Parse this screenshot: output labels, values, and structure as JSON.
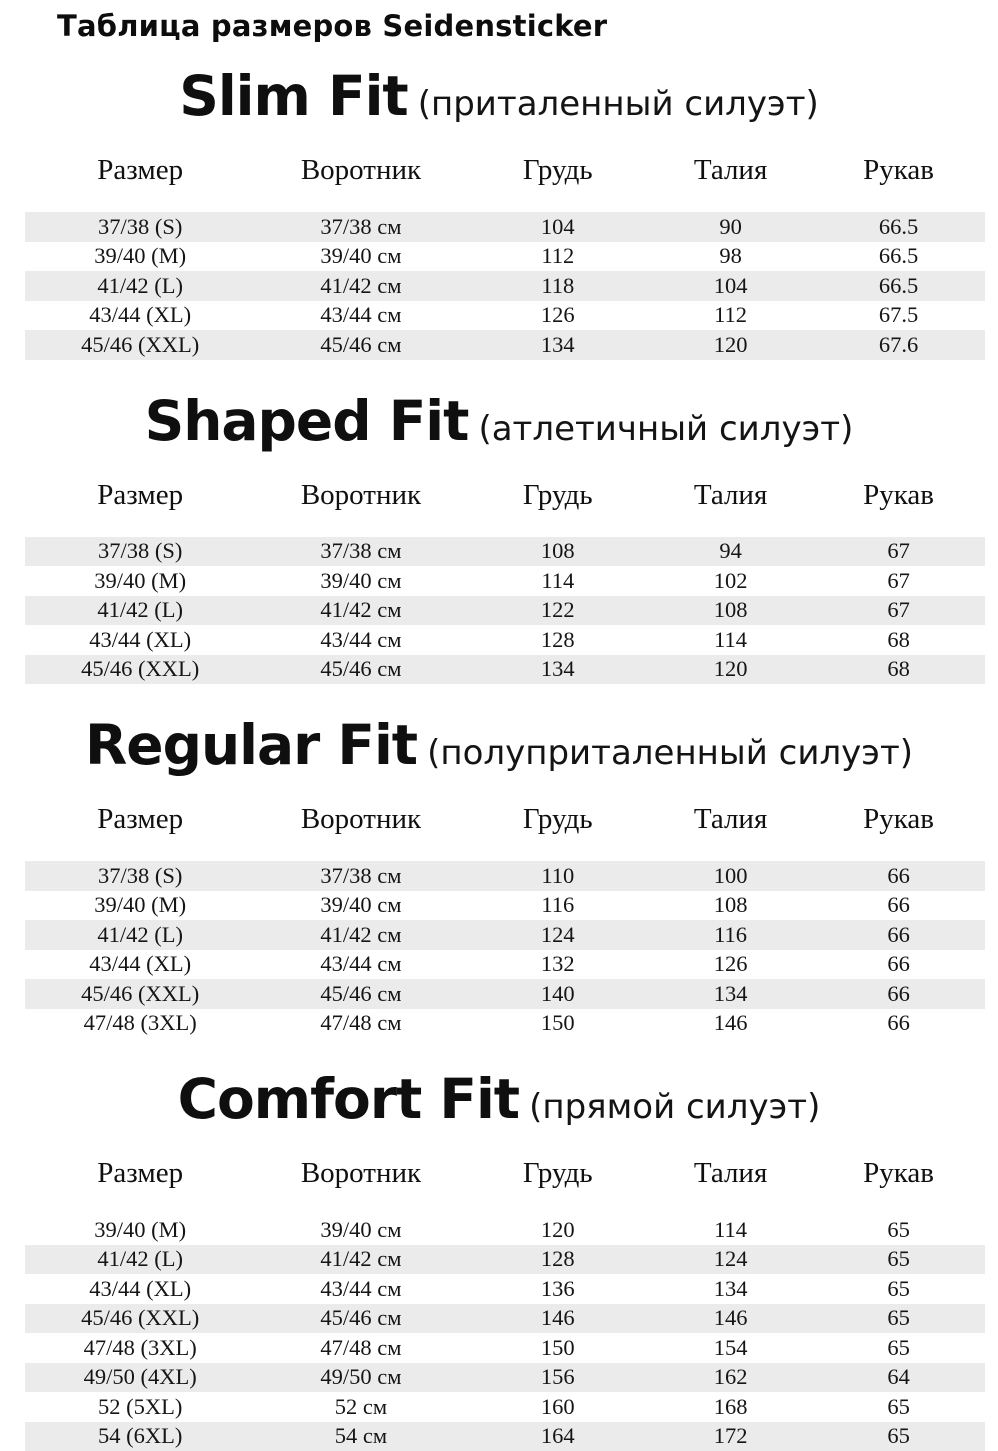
{
  "page_title": "Таблица размеров Seidensticker",
  "columns": [
    "Размер",
    "Воротник",
    "Грудь",
    "Талия",
    "Рукав"
  ],
  "colors": {
    "stripe": "#ebebeb",
    "text": "#141414",
    "background": "#ffffff"
  },
  "sections": [
    {
      "name": "Slim Fit",
      "subtitle": "(приталенный силуэт)",
      "stripe_offset": 0,
      "rows": [
        [
          "37/38 (S)",
          "37/38 см",
          "104",
          "90",
          "66.5"
        ],
        [
          "39/40 (M)",
          "39/40 см",
          "112",
          "98",
          "66.5"
        ],
        [
          "41/42 (L)",
          "41/42 см",
          "118",
          "104",
          "66.5"
        ],
        [
          "43/44 (XL)",
          "43/44 см",
          "126",
          "112",
          "67.5"
        ],
        [
          "45/46 (XXL)",
          "45/46 см",
          "134",
          "120",
          "67.6"
        ]
      ]
    },
    {
      "name": "Shaped Fit",
      "subtitle": "(атлетичный силуэт)",
      "stripe_offset": 0,
      "rows": [
        [
          "37/38 (S)",
          "37/38 см",
          "108",
          "94",
          "67"
        ],
        [
          "39/40 (M)",
          "39/40 см",
          "114",
          "102",
          "67"
        ],
        [
          "41/42 (L)",
          "41/42 см",
          "122",
          "108",
          "67"
        ],
        [
          "43/44 (XL)",
          "43/44 см",
          "128",
          "114",
          "68"
        ],
        [
          "45/46 (XXL)",
          "45/46 см",
          "134",
          "120",
          "68"
        ]
      ]
    },
    {
      "name": "Regular Fit",
      "subtitle": "(полуприталенный силуэт)",
      "stripe_offset": 0,
      "rows": [
        [
          "37/38 (S)",
          "37/38 см",
          "110",
          "100",
          "66"
        ],
        [
          "39/40 (M)",
          "39/40 см",
          "116",
          "108",
          "66"
        ],
        [
          "41/42 (L)",
          "41/42 см",
          "124",
          "116",
          "66"
        ],
        [
          "43/44 (XL)",
          "43/44 см",
          "132",
          "126",
          "66"
        ],
        [
          "45/46 (XXL)",
          "45/46 см",
          "140",
          "134",
          "66"
        ],
        [
          "47/48 (3XL)",
          "47/48 см",
          "150",
          "146",
          "66"
        ]
      ]
    },
    {
      "name": "Comfort Fit",
      "subtitle": "(прямой силуэт)",
      "stripe_offset": 1,
      "rows": [
        [
          "39/40 (M)",
          "39/40 см",
          "120",
          "114",
          "65"
        ],
        [
          "41/42 (L)",
          "41/42 см",
          "128",
          "124",
          "65"
        ],
        [
          "43/44 (XL)",
          "43/44 см",
          "136",
          "134",
          "65"
        ],
        [
          "45/46 (XXL)",
          "45/46 см",
          "146",
          "146",
          "65"
        ],
        [
          "47/48 (3XL)",
          "47/48 см",
          "150",
          "154",
          "65"
        ],
        [
          "49/50 (4XL)",
          "49/50 см",
          "156",
          "162",
          "64"
        ],
        [
          "52 (5XL)",
          "52 см",
          "160",
          "168",
          "65"
        ],
        [
          "54 (6XL)",
          "54 см",
          "164",
          "172",
          "65"
        ]
      ]
    }
  ]
}
